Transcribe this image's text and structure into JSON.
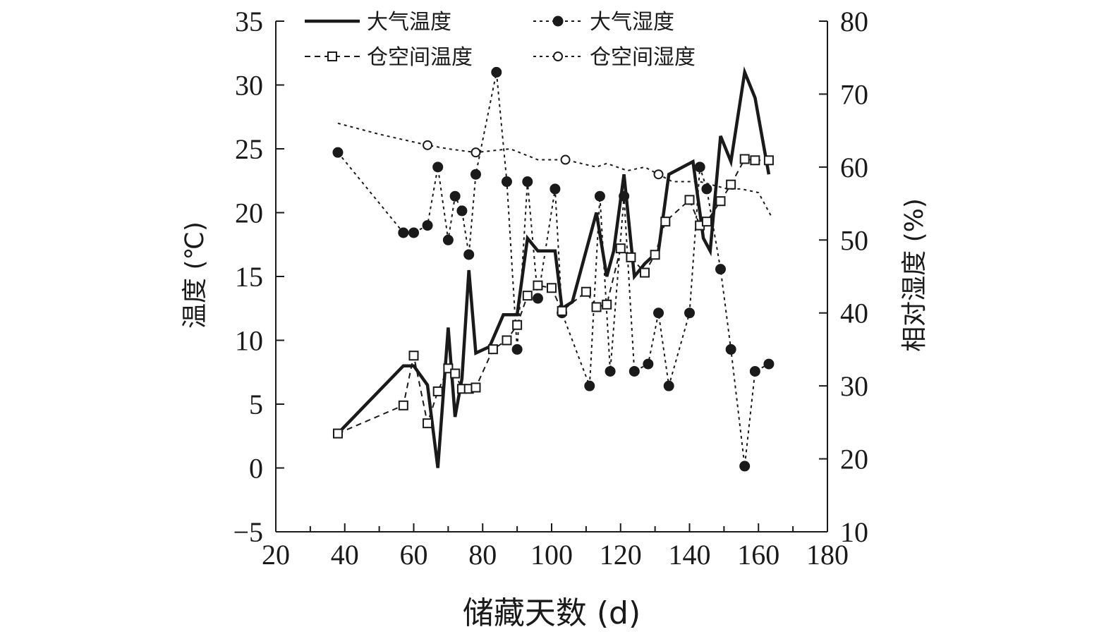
{
  "chart_data": {
    "type": "line",
    "title": "",
    "xlabel": "储藏天数 (d)",
    "ylabel": "温度 (℃)",
    "y2label": "相对湿度 (%)",
    "xlim": [
      20,
      180
    ],
    "ylim": [
      -5,
      35
    ],
    "y2lim": [
      10,
      80
    ],
    "x_ticks": [
      20,
      40,
      60,
      80,
      100,
      120,
      140,
      160,
      180
    ],
    "x_tick_labels": [
      "20",
      "40",
      "60",
      "80",
      "100",
      "120",
      "140",
      "160",
      "180"
    ],
    "y_ticks": [
      -5,
      0,
      5,
      10,
      15,
      20,
      25,
      30,
      35
    ],
    "y_tick_labels": [
      "−5",
      "0",
      "5",
      "10",
      "15",
      "20",
      "25",
      "30",
      "35"
    ],
    "y2_ticks": [
      10,
      20,
      30,
      40,
      50,
      60,
      70,
      80
    ],
    "y2_tick_labels": [
      "10",
      "20",
      "30",
      "40",
      "50",
      "60",
      "70",
      "80"
    ],
    "grid": false,
    "legend_position": "top",
    "series": [
      {
        "name": "大气温度",
        "axis": "left",
        "style": "solid",
        "marker": "none",
        "points": [
          [
            38,
            2.7
          ],
          [
            57,
            8
          ],
          [
            60,
            8
          ],
          [
            64,
            6.5
          ],
          [
            67,
            0
          ],
          [
            70,
            11
          ],
          [
            72,
            4
          ],
          [
            74,
            7
          ],
          [
            76,
            15.5
          ],
          [
            78,
            9
          ],
          [
            82,
            9.5
          ],
          [
            86,
            12
          ],
          [
            90,
            12
          ],
          [
            93,
            18
          ],
          [
            96,
            17
          ],
          [
            101,
            17
          ],
          [
            103,
            12.5
          ],
          [
            106,
            13
          ],
          [
            113,
            20
          ],
          [
            116,
            15
          ],
          [
            118,
            17
          ],
          [
            121,
            23
          ],
          [
            124,
            15
          ],
          [
            127,
            16
          ],
          [
            131,
            17
          ],
          [
            134,
            23
          ],
          [
            141,
            24
          ],
          [
            144,
            18
          ],
          [
            146,
            17
          ],
          [
            149,
            26
          ],
          [
            152,
            24
          ],
          [
            156,
            31
          ],
          [
            159,
            29
          ],
          [
            163,
            23
          ]
        ]
      },
      {
        "name": "大气湿度",
        "axis": "right",
        "style": "dotted",
        "marker": "filled-circle",
        "points": [
          [
            38,
            62
          ],
          [
            57,
            51
          ],
          [
            60,
            51
          ],
          [
            64,
            52
          ],
          [
            67,
            60
          ],
          [
            70,
            50
          ],
          [
            72,
            56
          ],
          [
            74,
            54
          ],
          [
            76,
            48
          ],
          [
            78,
            59
          ],
          [
            84,
            73
          ],
          [
            87,
            58
          ],
          [
            90,
            35
          ],
          [
            93,
            58
          ],
          [
            96,
            42
          ],
          [
            101,
            57
          ],
          [
            103,
            40
          ],
          [
            111,
            30
          ],
          [
            114,
            56
          ],
          [
            117,
            32
          ],
          [
            121,
            56
          ],
          [
            124,
            32
          ],
          [
            128,
            33
          ],
          [
            131,
            40
          ],
          [
            134,
            30
          ],
          [
            140,
            40
          ],
          [
            143,
            60
          ],
          [
            145,
            57
          ],
          [
            149,
            46
          ],
          [
            152,
            35
          ],
          [
            156,
            19
          ],
          [
            159,
            32
          ],
          [
            163,
            33
          ]
        ]
      },
      {
        "name": "仓空间温度",
        "axis": "left",
        "style": "dashed",
        "marker": "open-square",
        "points": [
          [
            38,
            2.7
          ],
          [
            57,
            4.9
          ],
          [
            60,
            8.8
          ],
          [
            64,
            3.5
          ],
          [
            67,
            6
          ],
          [
            70,
            7.8
          ],
          [
            72,
            7.4
          ],
          [
            74,
            6.2
          ],
          [
            76,
            6.2
          ],
          [
            78,
            6.3
          ],
          [
            83,
            9.3
          ],
          [
            87,
            10
          ],
          [
            90,
            11.2
          ],
          [
            93,
            13.5
          ],
          [
            96,
            14.3
          ],
          [
            100,
            14.1
          ],
          [
            103,
            12.3
          ],
          [
            110,
            13.8
          ],
          [
            113,
            12.6
          ],
          [
            116,
            12.8
          ],
          [
            120,
            17.2
          ],
          [
            123,
            16.5
          ],
          [
            127,
            15.3
          ],
          [
            130,
            16.7
          ],
          [
            133,
            19.3
          ],
          [
            140,
            21
          ],
          [
            143,
            19.0
          ],
          [
            145,
            19.3
          ],
          [
            149,
            20.9
          ],
          [
            152,
            22.2
          ],
          [
            156,
            24.2
          ],
          [
            159,
            24.1
          ],
          [
            163,
            24.1
          ]
        ]
      },
      {
        "name": "仓空间湿度",
        "axis": "right",
        "style": "dotted",
        "marker": "open-circle",
        "points": [
          [
            38,
            66
          ],
          [
            50,
            64.5
          ],
          [
            64,
            63
          ],
          [
            70,
            62.5
          ],
          [
            78,
            62
          ],
          [
            88,
            62.5
          ],
          [
            96,
            61
          ],
          [
            104,
            61
          ],
          [
            113,
            60
          ],
          [
            116,
            60.5
          ],
          [
            122,
            59.5
          ],
          [
            127,
            60
          ],
          [
            131,
            59
          ],
          [
            135,
            58
          ],
          [
            139,
            58
          ],
          [
            143,
            58
          ],
          [
            147,
            57.5
          ],
          [
            151,
            57
          ],
          [
            155,
            57
          ],
          [
            160,
            56.5
          ],
          [
            164,
            53
          ]
        ],
        "marked_points": [
          [
            64,
            63
          ],
          [
            78,
            62
          ],
          [
            104,
            61
          ],
          [
            131,
            59
          ]
        ]
      }
    ]
  }
}
